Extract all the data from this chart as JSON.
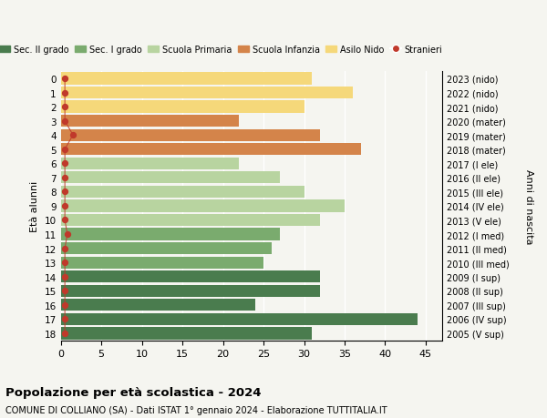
{
  "ages": [
    18,
    17,
    16,
    15,
    14,
    13,
    12,
    11,
    10,
    9,
    8,
    7,
    6,
    5,
    4,
    3,
    2,
    1,
    0
  ],
  "years_labels": [
    "2005 (V sup)",
    "2006 (IV sup)",
    "2007 (III sup)",
    "2008 (II sup)",
    "2009 (I sup)",
    "2010 (III med)",
    "2011 (II med)",
    "2012 (I med)",
    "2013 (V ele)",
    "2014 (IV ele)",
    "2015 (III ele)",
    "2016 (II ele)",
    "2017 (I ele)",
    "2018 (mater)",
    "2019 (mater)",
    "2020 (mater)",
    "2021 (nido)",
    "2022 (nido)",
    "2023 (nido)"
  ],
  "bar_values": [
    31,
    44,
    24,
    32,
    32,
    25,
    26,
    27,
    32,
    35,
    30,
    27,
    22,
    37,
    32,
    22,
    30,
    36,
    31
  ],
  "bar_colors": [
    "#4a7c4e",
    "#4a7c4e",
    "#4a7c4e",
    "#4a7c4e",
    "#4a7c4e",
    "#7aab6e",
    "#7aab6e",
    "#7aab6e",
    "#b8d4a0",
    "#b8d4a0",
    "#b8d4a0",
    "#b8d4a0",
    "#b8d4a0",
    "#d4844a",
    "#d4844a",
    "#d4844a",
    "#f5d87a",
    "#f5d87a",
    "#f5d87a"
  ],
  "stranieri_x": [
    0.5,
    0.5,
    0.5,
    0.5,
    0.5,
    0.5,
    0.5,
    0.8,
    0.5,
    0.5,
    0.5,
    0.5,
    0.5,
    0.5,
    1.5,
    0.5,
    0.5,
    0.5,
    0.5
  ],
  "legend_labels": [
    "Sec. II grado",
    "Sec. I grado",
    "Scuola Primaria",
    "Scuola Infanzia",
    "Asilo Nido",
    "Stranieri"
  ],
  "legend_colors": [
    "#4a7c4e",
    "#7aab6e",
    "#b8d4a0",
    "#d4844a",
    "#f5d87a",
    "#c0392b"
  ],
  "stranieri_color": "#c0392b",
  "ylabel": "Età alunni",
  "right_ylabel": "Anni di nascita",
  "title_bold": "Popolazione per età scolastica - 2024",
  "subtitle": "COMUNE DI COLLIANO (SA) - Dati ISTAT 1° gennaio 2024 - Elaborazione TUTTITALIA.IT",
  "xlim": [
    0,
    47
  ],
  "xticks": [
    0,
    5,
    10,
    15,
    20,
    25,
    30,
    35,
    40,
    45
  ],
  "bg_color": "#f5f5f0"
}
